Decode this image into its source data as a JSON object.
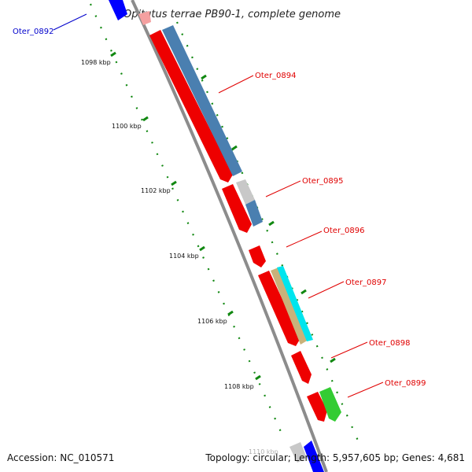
{
  "header": {
    "title": "Opitutus terrae PB90-1, complete genome"
  },
  "footer": {
    "accession": "Accession: NC_010571",
    "summary": "Topology: circular; Length: 5,957,605 bp; Genes: 4,681"
  },
  "axis": {
    "ticks": [
      "1098 kbp",
      "1100 kbp",
      "1102 kbp",
      "1104 kbp",
      "1106 kbp",
      "1108 kbp",
      "1110 kbp"
    ]
  },
  "genes": [
    {
      "id": "g0892",
      "label": "Oter_0892",
      "color": "#0000cc"
    },
    {
      "id": "g0894",
      "label": "Oter_0894",
      "color": "#e00000"
    },
    {
      "id": "g0895",
      "label": "Oter_0895",
      "color": "#e00000"
    },
    {
      "id": "g0896",
      "label": "Oter_0896",
      "color": "#e00000"
    },
    {
      "id": "g0897",
      "label": "Oter_0897",
      "color": "#e00000"
    },
    {
      "id": "g0898",
      "label": "Oter_0898",
      "color": "#e00000"
    },
    {
      "id": "g0899",
      "label": "Oter_0899",
      "color": "#e00000"
    }
  ],
  "colors": {
    "backbone": "#8c8c8c",
    "feature_red": "#ee0000",
    "feature_steelblue": "#4a7fb0",
    "feature_cyan": "#00e5ee",
    "feature_tan": "#c9b27a",
    "feature_green": "#33cc33",
    "feature_blue": "#0000ff",
    "tick_green": "#118811"
  }
}
